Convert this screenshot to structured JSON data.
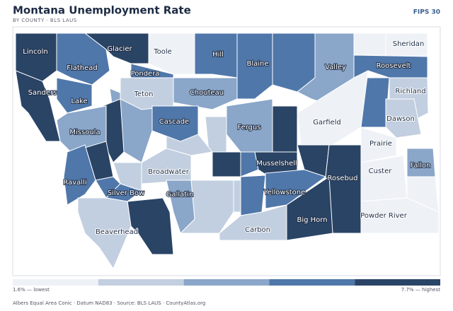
{
  "header": {
    "title": "Montana Unemployment Rate",
    "subtitle": "BY COUNTY · BLS LAUS",
    "badge": "FIPS 30"
  },
  "legend": {
    "colors": [
      "#eef1f6",
      "#c2cfe0",
      "#8aa6c9",
      "#4f77aa",
      "#2a4466"
    ],
    "min_label": "1.6% — lowest",
    "max_label": "7.7% — highest"
  },
  "counties": [
    {
      "name": "Lincoln",
      "color": "#2a4466"
    },
    {
      "name": "Glacier",
      "color": "#2a4466"
    },
    {
      "name": "Toole",
      "color": "#eef1f6"
    },
    {
      "name": "Hill",
      "color": "#4f77aa"
    },
    {
      "name": "Blaine",
      "color": "#4f77aa"
    },
    {
      "name": "Valley",
      "color": "#8aa6c9"
    },
    {
      "name": "Sheridan",
      "color": "#eef1f6"
    },
    {
      "name": "Flathead",
      "color": "#4f77aa"
    },
    {
      "name": "Pondera",
      "color": "#4f77aa"
    },
    {
      "name": "Roosevelt",
      "color": "#4f77aa"
    },
    {
      "name": "Sanders",
      "color": "#2a4466"
    },
    {
      "name": "Teton",
      "color": "#c2cfe0"
    },
    {
      "name": "Chouteau",
      "color": "#8aa6c9"
    },
    {
      "name": "Richland",
      "color": "#c2cfe0"
    },
    {
      "name": "Lake",
      "color": "#4f77aa"
    },
    {
      "name": "Cascade",
      "color": "#4f77aa"
    },
    {
      "name": "Garfield",
      "color": "#eef1f6"
    },
    {
      "name": "Dawson",
      "color": "#c2cfe0"
    },
    {
      "name": "Fergus",
      "color": "#8aa6c9"
    },
    {
      "name": "Missoula",
      "color": "#8aa6c9"
    },
    {
      "name": "Prairie",
      "color": "#eef1f6"
    },
    {
      "name": "Fallon",
      "color": "#8aa6c9"
    },
    {
      "name": "Musselshell",
      "color": "#2a4466"
    },
    {
      "name": "Broadwater",
      "color": "#c2cfe0"
    },
    {
      "name": "Custer",
      "color": "#eef1f6"
    },
    {
      "name": "Rosebud",
      "color": "#2a4466"
    },
    {
      "name": "Ravalli",
      "color": "#4f77aa"
    },
    {
      "name": "Silver Bow",
      "color": "#4f77aa"
    },
    {
      "name": "Yellowstone",
      "color": "#4f77aa"
    },
    {
      "name": "Gallatin",
      "color": "#8aa6c9"
    },
    {
      "name": "Powder River",
      "color": "#eef1f6"
    },
    {
      "name": "Big Horn",
      "color": "#2a4466"
    },
    {
      "name": "Beaverhead",
      "color": "#c2cfe0"
    },
    {
      "name": "Carbon",
      "color": "#c2cfe0"
    }
  ],
  "footer": "Albers Equal Area Conic · Datum NAD83 · Source: BLS LAUS · CountyAtlas.org"
}
